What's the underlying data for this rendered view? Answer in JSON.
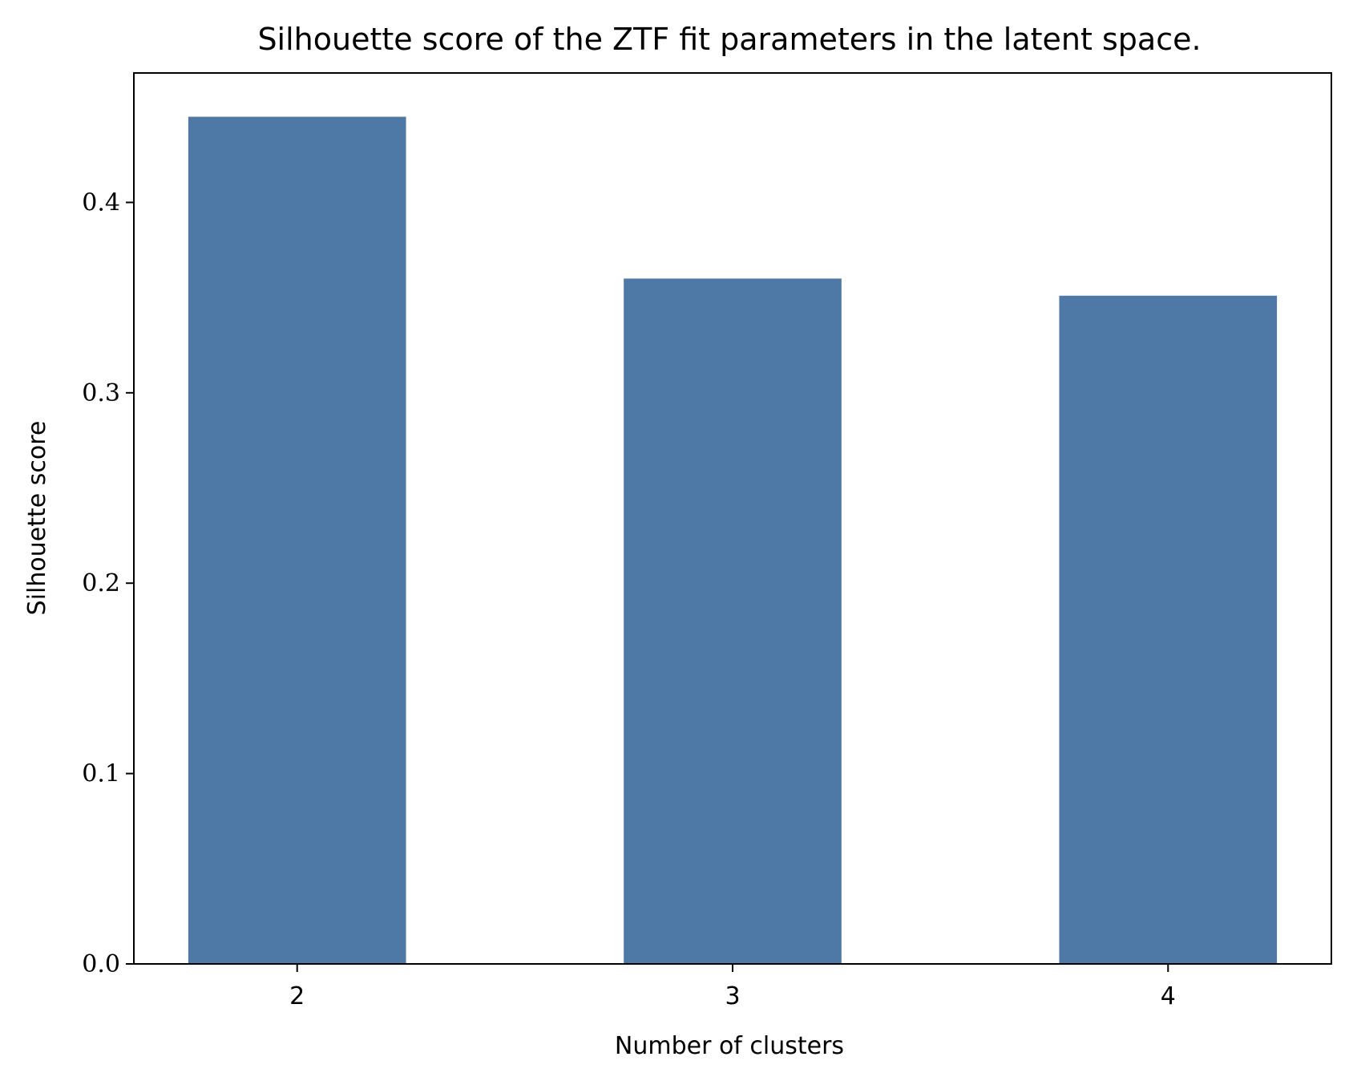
{
  "chart_data": {
    "type": "bar",
    "title": "Silhouette score of the ZTF fit parameters in the latent space.",
    "xlabel": "Number of clusters",
    "ylabel": "Silhouette score",
    "categories": [
      "2",
      "3",
      "4"
    ],
    "values": [
      0.445,
      0.36,
      0.351
    ],
    "ylim": [
      0,
      0.468
    ],
    "yticks": [
      "0.0",
      "0.1",
      "0.2",
      "0.3",
      "0.4"
    ],
    "bar_color": "#4e78a5",
    "grid": false,
    "legend": "none"
  }
}
